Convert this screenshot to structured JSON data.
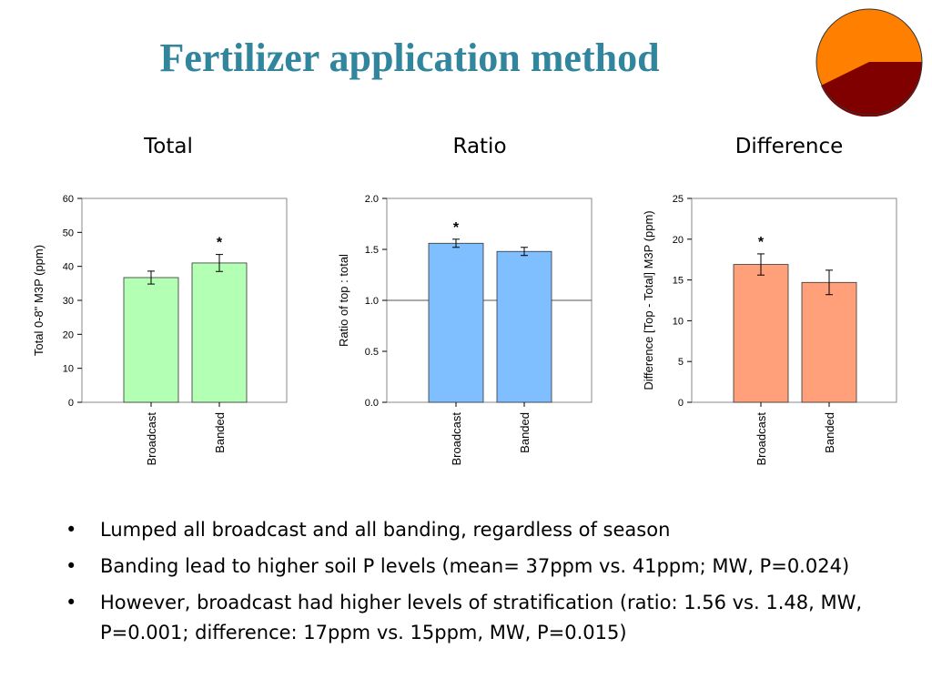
{
  "slide": {
    "title": "Fertilizer application method",
    "title_color": "#31859C"
  },
  "logo": {
    "icon": "orange-maroon-pie-logo",
    "colors": [
      "#FF8000",
      "#800000"
    ]
  },
  "bullets": [
    "Lumped all broadcast and all banding, regardless of season",
    "Banding lead to higher soil P levels (mean= 37ppm vs. 41ppm; MW, P=0.024)",
    "However, broadcast had higher levels of stratification (ratio: 1.56 vs. 1.48, MW, P=0.001; difference: 17ppm vs. 15ppm, MW, P=0.015)"
  ],
  "chart_data": [
    {
      "type": "bar",
      "title": "Total",
      "ylabel": "Total 0-8\" M3P (ppm)",
      "xlabel": "",
      "categories": [
        "Broadcast",
        "Banded"
      ],
      "values": [
        36.7,
        41.0
      ],
      "errors": [
        1.9,
        2.5
      ],
      "significant": [
        false,
        true
      ],
      "sig_marker": "*",
      "ylim": [
        0,
        60
      ],
      "yticks": [
        0,
        10,
        20,
        30,
        40,
        50,
        60
      ],
      "ytick_labels": [
        "0",
        "10",
        "20",
        "30",
        "40",
        "50",
        "60"
      ],
      "reference_line": null,
      "bar_color": "#B3FFB3",
      "grid": false
    },
    {
      "type": "bar",
      "title": "Ratio",
      "ylabel": "Ratio of top : total",
      "xlabel": "",
      "categories": [
        "Broadcast",
        "Banded"
      ],
      "values": [
        1.56,
        1.48
      ],
      "errors": [
        0.04,
        0.04
      ],
      "significant": [
        true,
        false
      ],
      "sig_marker": "*",
      "ylim": [
        0,
        2.0
      ],
      "yticks": [
        0,
        0.5,
        1.0,
        1.5,
        2.0
      ],
      "ytick_labels": [
        "0.0",
        "0.5",
        "1.0",
        "1.5",
        "2.0"
      ],
      "reference_line": 1.0,
      "bar_color": "#80BFFF",
      "grid": false
    },
    {
      "type": "bar",
      "title": "Difference",
      "ylabel": "Difference [Top - Total] M3P (ppm)",
      "xlabel": "",
      "categories": [
        "Broadcast",
        "Banded"
      ],
      "values": [
        16.9,
        14.7
      ],
      "errors": [
        1.3,
        1.5
      ],
      "significant": [
        true,
        false
      ],
      "sig_marker": "*",
      "ylim": [
        0,
        25
      ],
      "yticks": [
        0,
        5,
        10,
        15,
        20,
        25
      ],
      "ytick_labels": [
        "0",
        "5",
        "10",
        "15",
        "20",
        "25"
      ],
      "reference_line": null,
      "bar_color": "#FFA07A",
      "grid": false
    }
  ]
}
